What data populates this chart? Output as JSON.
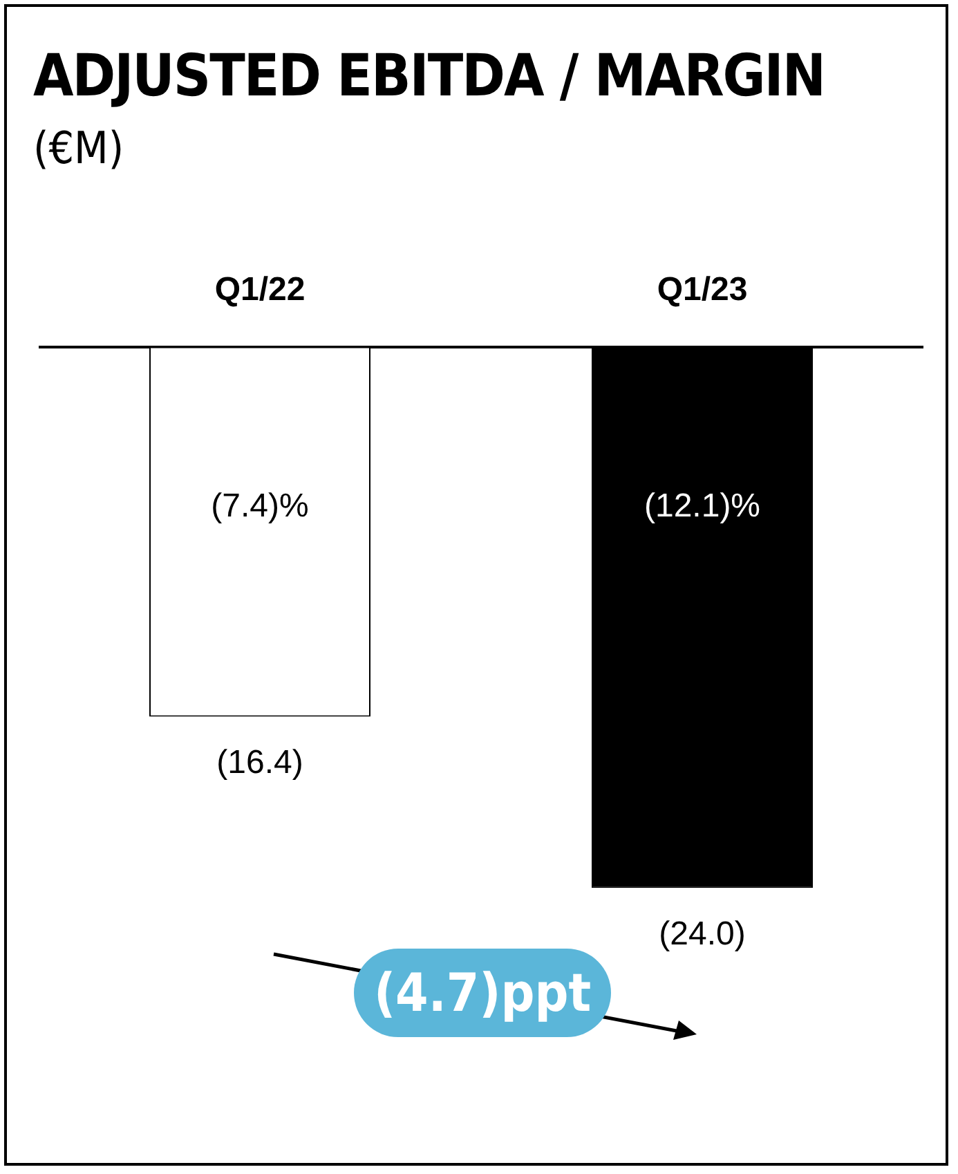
{
  "chart_data": {
    "type": "bar",
    "title": "ADJUSTED EBITDA / MARGIN",
    "subtitle": "(€M)",
    "categories": [
      "Q1/22",
      "Q1/23"
    ],
    "values": [
      -16.4,
      -24.0
    ],
    "colors": [
      "#ffffff",
      "#000000"
    ],
    "value_labels": [
      "(16.4)",
      "(24.0)"
    ],
    "tick_labels": "x",
    "grid": false,
    "annotations": [
      "(7.4)%",
      "(12.1)%",
      "(4.7)ppt"
    ]
  }
}
